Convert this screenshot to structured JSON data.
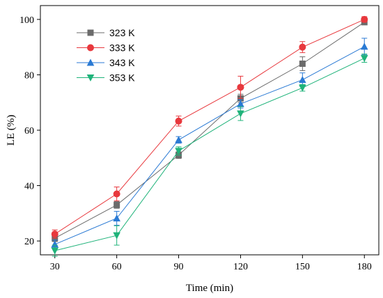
{
  "chart_data": {
    "type": "line",
    "xlabel": "Time (min)",
    "ylabel": "LE (%)",
    "x": [
      30,
      60,
      90,
      120,
      150,
      180
    ],
    "xlim": [
      23,
      187
    ],
    "ylim": [
      15,
      105
    ],
    "xticks": [
      30,
      60,
      90,
      120,
      150,
      180
    ],
    "yticks": [
      20,
      40,
      60,
      80,
      100
    ],
    "legend_position": "top-left",
    "series": [
      {
        "name": "323 K",
        "color": "#6b6b6b",
        "marker": "square",
        "values": [
          21,
          33,
          51,
          71.5,
          84,
          99
        ],
        "errors": [
          1.2,
          1.2,
          1.2,
          1.5,
          2.5,
          0.8
        ]
      },
      {
        "name": "333 K",
        "color": "#e8383d",
        "marker": "circle",
        "values": [
          22.5,
          37,
          63.3,
          75.5,
          90,
          100
        ],
        "errors": [
          1.5,
          2.5,
          1.8,
          4,
          2,
          1
        ]
      },
      {
        "name": "343 K",
        "color": "#2a7ad4",
        "marker": "triangle-up",
        "values": [
          18.8,
          28.2,
          56.5,
          69.5,
          78.2,
          90.2
        ],
        "errors": [
          1.5,
          2.5,
          1.2,
          1.5,
          2.5,
          3
        ]
      },
      {
        "name": "353 K",
        "color": "#1fb37a",
        "marker": "triangle-down",
        "values": [
          16.5,
          22,
          52.5,
          66,
          75.3,
          86
        ],
        "errors": [
          2,
          3.5,
          1.5,
          2.5,
          1.2,
          1.5
        ]
      }
    ]
  }
}
